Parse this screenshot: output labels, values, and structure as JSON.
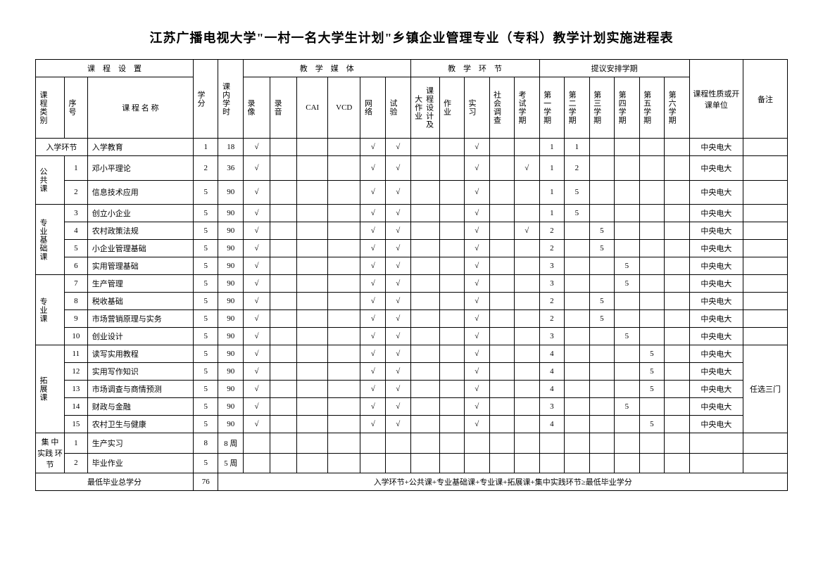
{
  "title": "江苏广播电视大学\"一村一名大学生计划\"乡镇企业管理专业（专科）教学计划实施进程表",
  "headers": {
    "course_setup": "课　程　设　置",
    "category": "课程类别",
    "seq": "序号",
    "course_name": "课 程 名 称",
    "credit": "学分",
    "hours": "课内学时",
    "media": "教　学　媒　体",
    "video": "录像",
    "audio": "录音",
    "cai": "CAI",
    "vcd": "VCD",
    "net": "网络",
    "exp": "试验",
    "teach_link": "教　学　环　节",
    "design": "课程设计及大作业",
    "homework": "作业",
    "practice": "实习",
    "survey": "社会调查",
    "exam": "考试学期",
    "sem_suggest": "提议安排学期",
    "sem1": "第一学期",
    "sem2": "第二学期",
    "sem3": "第三学期",
    "sem4": "第四学期",
    "sem5": "第五学期",
    "sem6": "第六学期",
    "nature": "课程性质或开课单位",
    "remark": "备注"
  },
  "categories": {
    "entry": "入学环节",
    "public": "公共课",
    "basic": "专业基础课",
    "major": "专业课",
    "ext": "拓展课",
    "practice": "集 中 实践  环节"
  },
  "rows": [
    {
      "seq": "",
      "name": "入学教育",
      "credit": "1",
      "hours": "18",
      "video": "√",
      "audio": "",
      "cai": "",
      "vcd": "",
      "net": "√",
      "exp": "√",
      "design": "",
      "hw": "",
      "prac": "√",
      "survey": "",
      "exam": "",
      "s1": "1",
      "s2": "1",
      "s3": "",
      "s4": "",
      "s5": "",
      "s6": "",
      "unit": "中央电大",
      "remark": ""
    },
    {
      "seq": "1",
      "name": "邓小平理论",
      "credit": "2",
      "hours": "36",
      "video": "√",
      "audio": "",
      "cai": "",
      "vcd": "",
      "net": "√",
      "exp": "√",
      "design": "",
      "hw": "",
      "prac": "√",
      "survey": "",
      "exam": "√",
      "s1": "1",
      "s2": "2",
      "s3": "",
      "s4": "",
      "s5": "",
      "s6": "",
      "unit": "中央电大",
      "remark": ""
    },
    {
      "seq": "2",
      "name": "信息技术应用",
      "credit": "5",
      "hours": "90",
      "video": "√",
      "audio": "",
      "cai": "",
      "vcd": "",
      "net": "√",
      "exp": "√",
      "design": "",
      "hw": "",
      "prac": "√",
      "survey": "",
      "exam": "",
      "s1": "1",
      "s2": "5",
      "s3": "",
      "s4": "",
      "s5": "",
      "s6": "",
      "unit": "中央电大",
      "remark": ""
    },
    {
      "seq": "3",
      "name": "创立小企业",
      "credit": "5",
      "hours": "90",
      "video": "√",
      "audio": "",
      "cai": "",
      "vcd": "",
      "net": "√",
      "exp": "√",
      "design": "",
      "hw": "",
      "prac": "√",
      "survey": "",
      "exam": "",
      "s1": "1",
      "s2": "5",
      "s3": "",
      "s4": "",
      "s5": "",
      "s6": "",
      "unit": "中央电大",
      "remark": ""
    },
    {
      "seq": "4",
      "name": "农村政策法规",
      "credit": "5",
      "hours": "90",
      "video": "√",
      "audio": "",
      "cai": "",
      "vcd": "",
      "net": "√",
      "exp": "√",
      "design": "",
      "hw": "",
      "prac": "√",
      "survey": "",
      "exam": "√",
      "s1": "2",
      "s2": "",
      "s3": "5",
      "s4": "",
      "s5": "",
      "s6": "",
      "unit": "中央电大",
      "remark": ""
    },
    {
      "seq": "5",
      "name": "小企业管理基础",
      "credit": "5",
      "hours": "90",
      "video": "√",
      "audio": "",
      "cai": "",
      "vcd": "",
      "net": "√",
      "exp": "√",
      "design": "",
      "hw": "",
      "prac": "√",
      "survey": "",
      "exam": "",
      "s1": "2",
      "s2": "",
      "s3": "5",
      "s4": "",
      "s5": "",
      "s6": "",
      "unit": "中央电大",
      "remark": ""
    },
    {
      "seq": "6",
      "name": "实用管理基础",
      "credit": "5",
      "hours": "90",
      "video": "√",
      "audio": "",
      "cai": "",
      "vcd": "",
      "net": "√",
      "exp": "√",
      "design": "",
      "hw": "",
      "prac": "√",
      "survey": "",
      "exam": "",
      "s1": "3",
      "s2": "",
      "s3": "",
      "s4": "5",
      "s5": "",
      "s6": "",
      "unit": "中央电大",
      "remark": ""
    },
    {
      "seq": "7",
      "name": "生产管理",
      "credit": "5",
      "hours": "90",
      "video": "√",
      "audio": "",
      "cai": "",
      "vcd": "",
      "net": "√",
      "exp": "√",
      "design": "",
      "hw": "",
      "prac": "√",
      "survey": "",
      "exam": "",
      "s1": "3",
      "s2": "",
      "s3": "",
      "s4": "5",
      "s5": "",
      "s6": "",
      "unit": "中央电大",
      "remark": ""
    },
    {
      "seq": "8",
      "name": "税收基础",
      "credit": "5",
      "hours": "90",
      "video": "√",
      "audio": "",
      "cai": "",
      "vcd": "",
      "net": "√",
      "exp": "√",
      "design": "",
      "hw": "",
      "prac": "√",
      "survey": "",
      "exam": "",
      "s1": "2",
      "s2": "",
      "s3": "5",
      "s4": "",
      "s5": "",
      "s6": "",
      "unit": "中央电大",
      "remark": ""
    },
    {
      "seq": "9",
      "name": "市场营销原理与实务",
      "credit": "5",
      "hours": "90",
      "video": "√",
      "audio": "",
      "cai": "",
      "vcd": "",
      "net": "√",
      "exp": "√",
      "design": "",
      "hw": "",
      "prac": "√",
      "survey": "",
      "exam": "",
      "s1": "2",
      "s2": "",
      "s3": "5",
      "s4": "",
      "s5": "",
      "s6": "",
      "unit": "中央电大",
      "remark": ""
    },
    {
      "seq": "10",
      "name": "创业设计",
      "credit": "5",
      "hours": "90",
      "video": "√",
      "audio": "",
      "cai": "",
      "vcd": "",
      "net": "√",
      "exp": "√",
      "design": "",
      "hw": "",
      "prac": "√",
      "survey": "",
      "exam": "",
      "s1": "3",
      "s2": "",
      "s3": "",
      "s4": "5",
      "s5": "",
      "s6": "",
      "unit": "中央电大",
      "remark": ""
    },
    {
      "seq": "11",
      "name": "读写实用教程",
      "credit": "5",
      "hours": "90",
      "video": "√",
      "audio": "",
      "cai": "",
      "vcd": "",
      "net": "√",
      "exp": "√",
      "design": "",
      "hw": "",
      "prac": "√",
      "survey": "",
      "exam": "",
      "s1": "4",
      "s2": "",
      "s3": "",
      "s4": "",
      "s5": "5",
      "s6": "",
      "unit": "中央电大",
      "remark": ""
    },
    {
      "seq": "12",
      "name": "实用写作知识",
      "credit": "5",
      "hours": "90",
      "video": "√",
      "audio": "",
      "cai": "",
      "vcd": "",
      "net": "√",
      "exp": "√",
      "design": "",
      "hw": "",
      "prac": "√",
      "survey": "",
      "exam": "",
      "s1": "4",
      "s2": "",
      "s3": "",
      "s4": "",
      "s5": "5",
      "s6": "",
      "unit": "中央电大",
      "remark": ""
    },
    {
      "seq": "13",
      "name": "市场调查与商情预测",
      "credit": "5",
      "hours": "90",
      "video": "√",
      "audio": "",
      "cai": "",
      "vcd": "",
      "net": "√",
      "exp": "√",
      "design": "",
      "hw": "",
      "prac": "√",
      "survey": "",
      "exam": "",
      "s1": "4",
      "s2": "",
      "s3": "",
      "s4": "",
      "s5": "5",
      "s6": "",
      "unit": "中央电大",
      "remark": ""
    },
    {
      "seq": "14",
      "name": "财政与金融",
      "credit": "5",
      "hours": "90",
      "video": "√",
      "audio": "",
      "cai": "",
      "vcd": "",
      "net": "√",
      "exp": "√",
      "design": "",
      "hw": "",
      "prac": "√",
      "survey": "",
      "exam": "",
      "s1": "3",
      "s2": "",
      "s3": "",
      "s4": "5",
      "s5": "",
      "s6": "",
      "unit": "中央电大",
      "remark": ""
    },
    {
      "seq": "15",
      "name": "农村卫生与健康",
      "credit": "5",
      "hours": "90",
      "video": "√",
      "audio": "",
      "cai": "",
      "vcd": "",
      "net": "√",
      "exp": "√",
      "design": "",
      "hw": "",
      "prac": "√",
      "survey": "",
      "exam": "",
      "s1": "4",
      "s2": "",
      "s3": "",
      "s4": "",
      "s5": "5",
      "s6": "",
      "unit": "中央电大",
      "remark": ""
    },
    {
      "seq": "1",
      "name": "生产实习",
      "credit": "8",
      "hours": "8 周",
      "video": "",
      "audio": "",
      "cai": "",
      "vcd": "",
      "net": "",
      "exp": "",
      "design": "",
      "hw": "",
      "prac": "",
      "survey": "",
      "exam": "",
      "s1": "",
      "s2": "",
      "s3": "",
      "s4": "",
      "s5": "",
      "s6": "",
      "unit": "",
      "remark": ""
    },
    {
      "seq": "2",
      "name": "毕业作业",
      "credit": "5",
      "hours": "5 周",
      "video": "",
      "audio": "",
      "cai": "",
      "vcd": "",
      "net": "",
      "exp": "",
      "design": "",
      "hw": "",
      "prac": "",
      "survey": "",
      "exam": "",
      "s1": "",
      "s2": "",
      "s3": "",
      "s4": "",
      "s5": "",
      "s6": "",
      "unit": "",
      "remark": ""
    }
  ],
  "footer": {
    "label": "最低毕业总学分",
    "total": "76",
    "note": "入学环节+公共课+专业基础课+专业课+拓展课+集中实践环节≥最低毕业学分"
  },
  "ext_remark": "任选三门"
}
